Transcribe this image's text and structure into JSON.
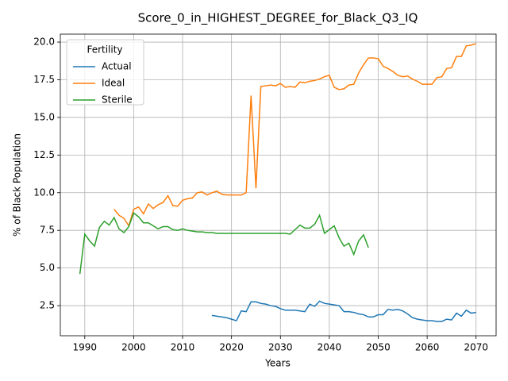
{
  "chart_data": {
    "type": "line",
    "title": "Score_0_in_HIGHEST_DEGREE_for_Black_Q3_IQ",
    "x_label": "Years",
    "y_label": "% of Black Population",
    "legend_title": "Fertility",
    "legend": "upper left",
    "grid": true,
    "xlim": [
      1985,
      2074.1
    ],
    "xticks": [
      1990,
      2000,
      2010,
      2020,
      2030,
      2040,
      2050,
      2060,
      2070
    ],
    "ylim": [
      0.5,
      20.53
    ],
    "yticks": [
      2.5,
      {
        "value": 5,
        "label": "5.0"
      },
      7.5,
      {
        "value": 10,
        "label": "10.0"
      },
      12.5,
      {
        "value": 15,
        "label": "15.0"
      },
      17.5,
      {
        "value": 20,
        "label": "20.0"
      }
    ],
    "x": [
      1989,
      1990,
      1991,
      1992,
      1993,
      1994,
      1995,
      1996,
      1997,
      1998,
      1999,
      2000,
      2001,
      2002,
      2003,
      2004,
      2005,
      2006,
      2007,
      2008,
      2009,
      2010,
      2011,
      2012,
      2013,
      2014,
      2015,
      2016,
      2017,
      2018,
      2019,
      2020,
      2021,
      2022,
      2023,
      2024,
      2025,
      2026,
      2027,
      2028,
      2029,
      2030,
      2031,
      2032,
      2033,
      2034,
      2035,
      2036,
      2037,
      2038,
      2039,
      2040,
      2041,
      2042,
      2043,
      2044,
      2045,
      2046,
      2047,
      2048,
      2049,
      2050,
      2051,
      2052,
      2053,
      2054,
      2055,
      2056,
      2057,
      2058,
      2059,
      2060,
      2061,
      2062,
      2063,
      2064,
      2065,
      2066,
      2067,
      2068,
      2069,
      2070
    ],
    "series": [
      {
        "name": "Actual",
        "color": "#1f77b4",
        "values": [
          null,
          null,
          null,
          null,
          null,
          null,
          null,
          null,
          null,
          null,
          null,
          null,
          null,
          null,
          null,
          null,
          null,
          null,
          null,
          null,
          null,
          null,
          null,
          null,
          null,
          null,
          null,
          1.85,
          1.8,
          1.75,
          1.7,
          1.6,
          1.5,
          2.15,
          2.1,
          2.75,
          2.75,
          2.65,
          2.6,
          2.5,
          2.45,
          2.3,
          2.2,
          2.2,
          2.2,
          2.15,
          2.1,
          2.6,
          2.45,
          2.8,
          2.65,
          2.6,
          2.55,
          2.5,
          2.1,
          2.1,
          2.05,
          1.95,
          1.9,
          1.75,
          1.75,
          1.9,
          1.9,
          2.25,
          2.2,
          2.25,
          2.15,
          1.95,
          1.7,
          1.6,
          1.55,
          1.5,
          1.5,
          1.45,
          1.45,
          1.6,
          1.55,
          2.0,
          1.8,
          2.2,
          2.0,
          2.05
        ]
      },
      {
        "name": "Ideal",
        "color": "#ff7f0e",
        "values": [
          null,
          null,
          null,
          null,
          null,
          null,
          null,
          8.9,
          8.5,
          8.3,
          7.8,
          8.9,
          9.05,
          8.6,
          9.25,
          8.95,
          9.2,
          9.35,
          9.8,
          9.15,
          9.1,
          9.5,
          9.6,
          9.65,
          10.0,
          10.05,
          9.85,
          10.0,
          10.1,
          9.9,
          9.85,
          9.85,
          9.85,
          9.85,
          10.0,
          16.45,
          10.3,
          17.05,
          17.1,
          17.15,
          17.1,
          17.25,
          17.0,
          17.05,
          17.0,
          17.35,
          17.3,
          17.4,
          17.45,
          17.55,
          17.7,
          17.8,
          17.0,
          16.85,
          16.9,
          17.15,
          17.2,
          17.95,
          18.5,
          18.95,
          18.95,
          18.9,
          18.4,
          18.25,
          18.05,
          17.8,
          17.7,
          17.75,
          17.55,
          17.4,
          17.2,
          17.2,
          17.2,
          17.65,
          17.7,
          18.25,
          18.3,
          19.05,
          19.05,
          19.75,
          19.8,
          19.9
        ]
      },
      {
        "name": "Sterile",
        "color": "#2ca02c",
        "values": [
          4.6,
          7.25,
          6.8,
          6.45,
          7.7,
          8.1,
          7.85,
          8.35,
          7.6,
          7.35,
          7.75,
          8.65,
          8.4,
          8.0,
          8.0,
          7.8,
          7.6,
          7.75,
          7.75,
          7.55,
          7.5,
          7.6,
          7.5,
          7.45,
          7.4,
          7.4,
          7.35,
          7.35,
          7.3,
          7.3,
          7.3,
          7.3,
          7.3,
          7.3,
          7.3,
          7.3,
          7.3,
          7.3,
          7.3,
          7.3,
          7.3,
          7.3,
          7.3,
          7.25,
          7.55,
          7.85,
          7.65,
          7.65,
          7.9,
          8.5,
          7.3,
          7.55,
          7.8,
          7.0,
          6.45,
          6.65,
          5.9,
          6.8,
          7.2,
          6.35,
          null,
          null,
          null,
          null,
          null,
          null,
          null,
          null,
          null,
          null,
          null,
          null,
          null,
          null,
          null,
          null,
          null,
          null,
          null,
          null,
          null,
          null
        ]
      }
    ]
  }
}
